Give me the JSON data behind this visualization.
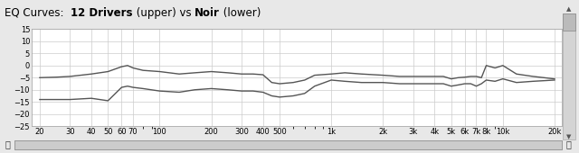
{
  "title_prefix": "EQ Curves:  ",
  "title_bold": "12 Drivers",
  "title_mid": " (upper) vs ",
  "title_bold2": "Noir",
  "title_suffix": " (lower)",
  "background_color": "#e8e8e8",
  "plot_bg_color": "#ffffff",
  "grid_color": "#cccccc",
  "line_color": "#555555",
  "border_color": "#aaaaaa",
  "ylim": [
    -25,
    15
  ],
  "yticks": [
    -25,
    -20,
    -15,
    -10,
    -5,
    0,
    5,
    10,
    15
  ],
  "xtick_labels": [
    "20",
    "30",
    "40",
    "50",
    "60",
    "70",
    "100",
    "200",
    "300",
    "400",
    "500",
    "1k",
    "2k",
    "3k",
    "4k",
    "5k",
    "6k",
    "7k",
    "8k",
    "10k",
    "20k"
  ],
  "xtick_freqs": [
    20,
    30,
    40,
    50,
    60,
    70,
    100,
    200,
    300,
    400,
    500,
    1000,
    2000,
    3000,
    4000,
    5000,
    6000,
    7000,
    8000,
    10000,
    20000
  ],
  "curve_upper_x": [
    20,
    25,
    30,
    40,
    50,
    60,
    65,
    70,
    80,
    100,
    130,
    160,
    200,
    250,
    300,
    350,
    400,
    450,
    500,
    600,
    700,
    800,
    1000,
    1200,
    1500,
    2000,
    2500,
    3000,
    3500,
    4000,
    4500,
    5000,
    5500,
    6000,
    6500,
    7000,
    7500,
    8000,
    9000,
    10000,
    12000,
    15000,
    20000
  ],
  "curve_upper_y": [
    -5.0,
    -4.8,
    -4.5,
    -3.5,
    -2.5,
    -0.5,
    0.0,
    -1.0,
    -2.0,
    -2.5,
    -3.5,
    -3.0,
    -2.5,
    -3.0,
    -3.5,
    -3.5,
    -3.8,
    -7.0,
    -7.5,
    -7.0,
    -6.0,
    -4.0,
    -3.5,
    -3.0,
    -3.5,
    -4.0,
    -4.5,
    -4.5,
    -4.5,
    -4.5,
    -4.5,
    -5.5,
    -5.0,
    -4.8,
    -4.5,
    -4.5,
    -5.0,
    0.0,
    -1.0,
    0.0,
    -3.5,
    -4.5,
    -5.5
  ],
  "curve_lower_x": [
    20,
    25,
    30,
    40,
    50,
    60,
    65,
    70,
    80,
    100,
    130,
    160,
    200,
    250,
    300,
    350,
    400,
    450,
    500,
    600,
    700,
    800,
    1000,
    1200,
    1500,
    2000,
    2500,
    3000,
    3500,
    4000,
    4500,
    5000,
    5500,
    6000,
    6500,
    7000,
    7500,
    8000,
    9000,
    10000,
    12000,
    15000,
    20000
  ],
  "curve_lower_y": [
    -14.0,
    -14.0,
    -14.0,
    -13.5,
    -14.5,
    -9.0,
    -8.5,
    -9.0,
    -9.5,
    -10.5,
    -11.0,
    -10.0,
    -9.5,
    -10.0,
    -10.5,
    -10.5,
    -11.0,
    -12.5,
    -13.0,
    -12.5,
    -11.5,
    -8.5,
    -6.0,
    -6.5,
    -7.0,
    -7.0,
    -7.5,
    -7.5,
    -7.5,
    -7.5,
    -7.5,
    -8.5,
    -8.0,
    -7.5,
    -7.5,
    -8.5,
    -7.5,
    -6.0,
    -6.5,
    -5.5,
    -7.0,
    -6.5,
    -6.0
  ],
  "title_fontsize": 8.5,
  "tick_fontsize": 6.0
}
